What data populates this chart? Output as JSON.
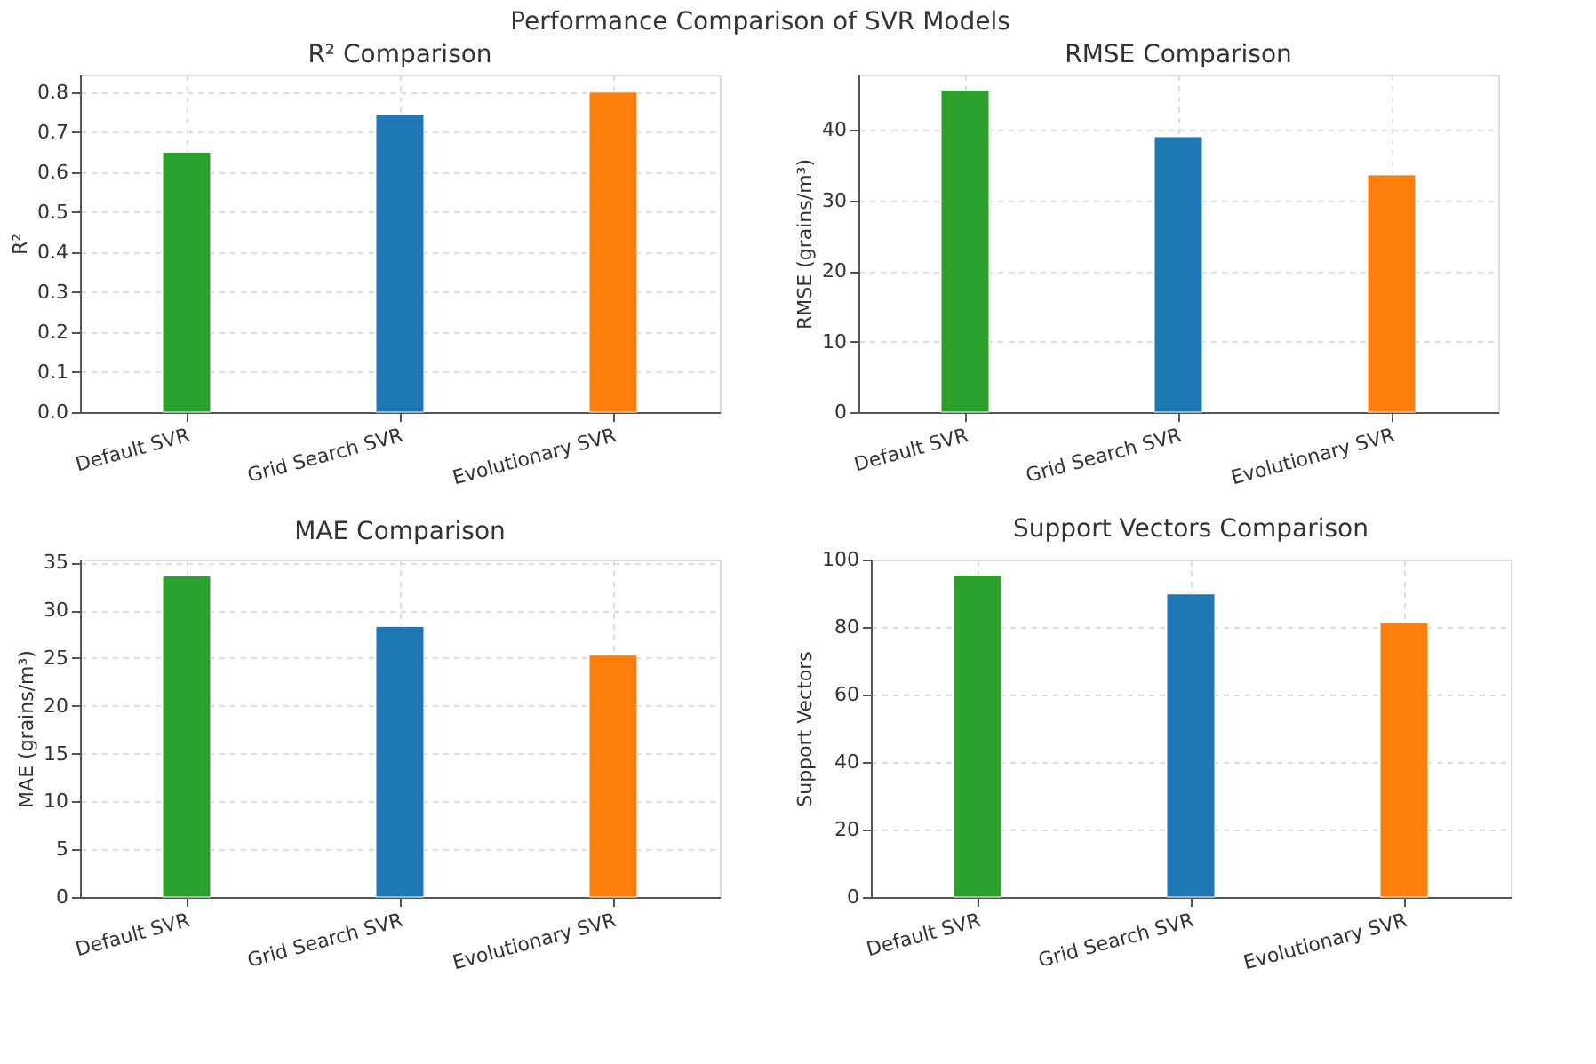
{
  "chart_data": [
    {
      "type": "bar",
      "title": "R² Comparison",
      "annotations": [
        "Performance Comparison of SVR Models"
      ],
      "categories": [
        "Default SVR",
        "Grid Search SVR",
        "Evolutionary SVR"
      ],
      "values": [
        0.65,
        0.745,
        0.8
      ],
      "colors": [
        "#2ca02c",
        "#1f77b4",
        "#ff7f0e"
      ],
      "ylabel": "R²",
      "ylim": [
        0,
        0.844
      ],
      "yticks": [
        {
          "value": 0,
          "label": "0.0"
        },
        0.1,
        0.2,
        0.3,
        0.4,
        0.5,
        0.6,
        0.7,
        0.8
      ],
      "grid": true
    },
    {
      "type": "bar",
      "title": "RMSE Comparison",
      "categories": [
        "Default SVR",
        "Grid Search SVR",
        "Evolutionary SVR"
      ],
      "values": [
        45.6,
        39.0,
        33.6
      ],
      "colors": [
        "#2ca02c",
        "#1f77b4",
        "#ff7f0e"
      ],
      "ylabel": "RMSE (grains/m³)",
      "ylim": [
        0,
        47.8
      ],
      "yticks": [
        0,
        10,
        20,
        30,
        40
      ],
      "grid": true
    },
    {
      "type": "bar",
      "title": "MAE Comparison",
      "categories": [
        "Default SVR",
        "Grid Search SVR",
        "Evolutionary SVR"
      ],
      "values": [
        33.6,
        28.3,
        25.3
      ],
      "colors": [
        "#2ca02c",
        "#1f77b4",
        "#ff7f0e"
      ],
      "ylabel": "MAE (grains/m³)",
      "ylim": [
        0,
        35.3
      ],
      "yticks": [
        0,
        5,
        10,
        15,
        20,
        25,
        30,
        35
      ],
      "grid": true
    },
    {
      "type": "bar",
      "title": "Support Vectors Comparison",
      "categories": [
        "Default SVR",
        "Grid Search SVR",
        "Evolutionary SVR"
      ],
      "values": [
        95.4,
        89.8,
        81.3
      ],
      "colors": [
        "#2ca02c",
        "#1f77b4",
        "#ff7f0e"
      ],
      "ylabel": "Support Vectors",
      "ylim": [
        0,
        100
      ],
      "yticks": [
        0,
        20,
        40,
        60,
        80,
        100
      ],
      "grid": true
    }
  ]
}
